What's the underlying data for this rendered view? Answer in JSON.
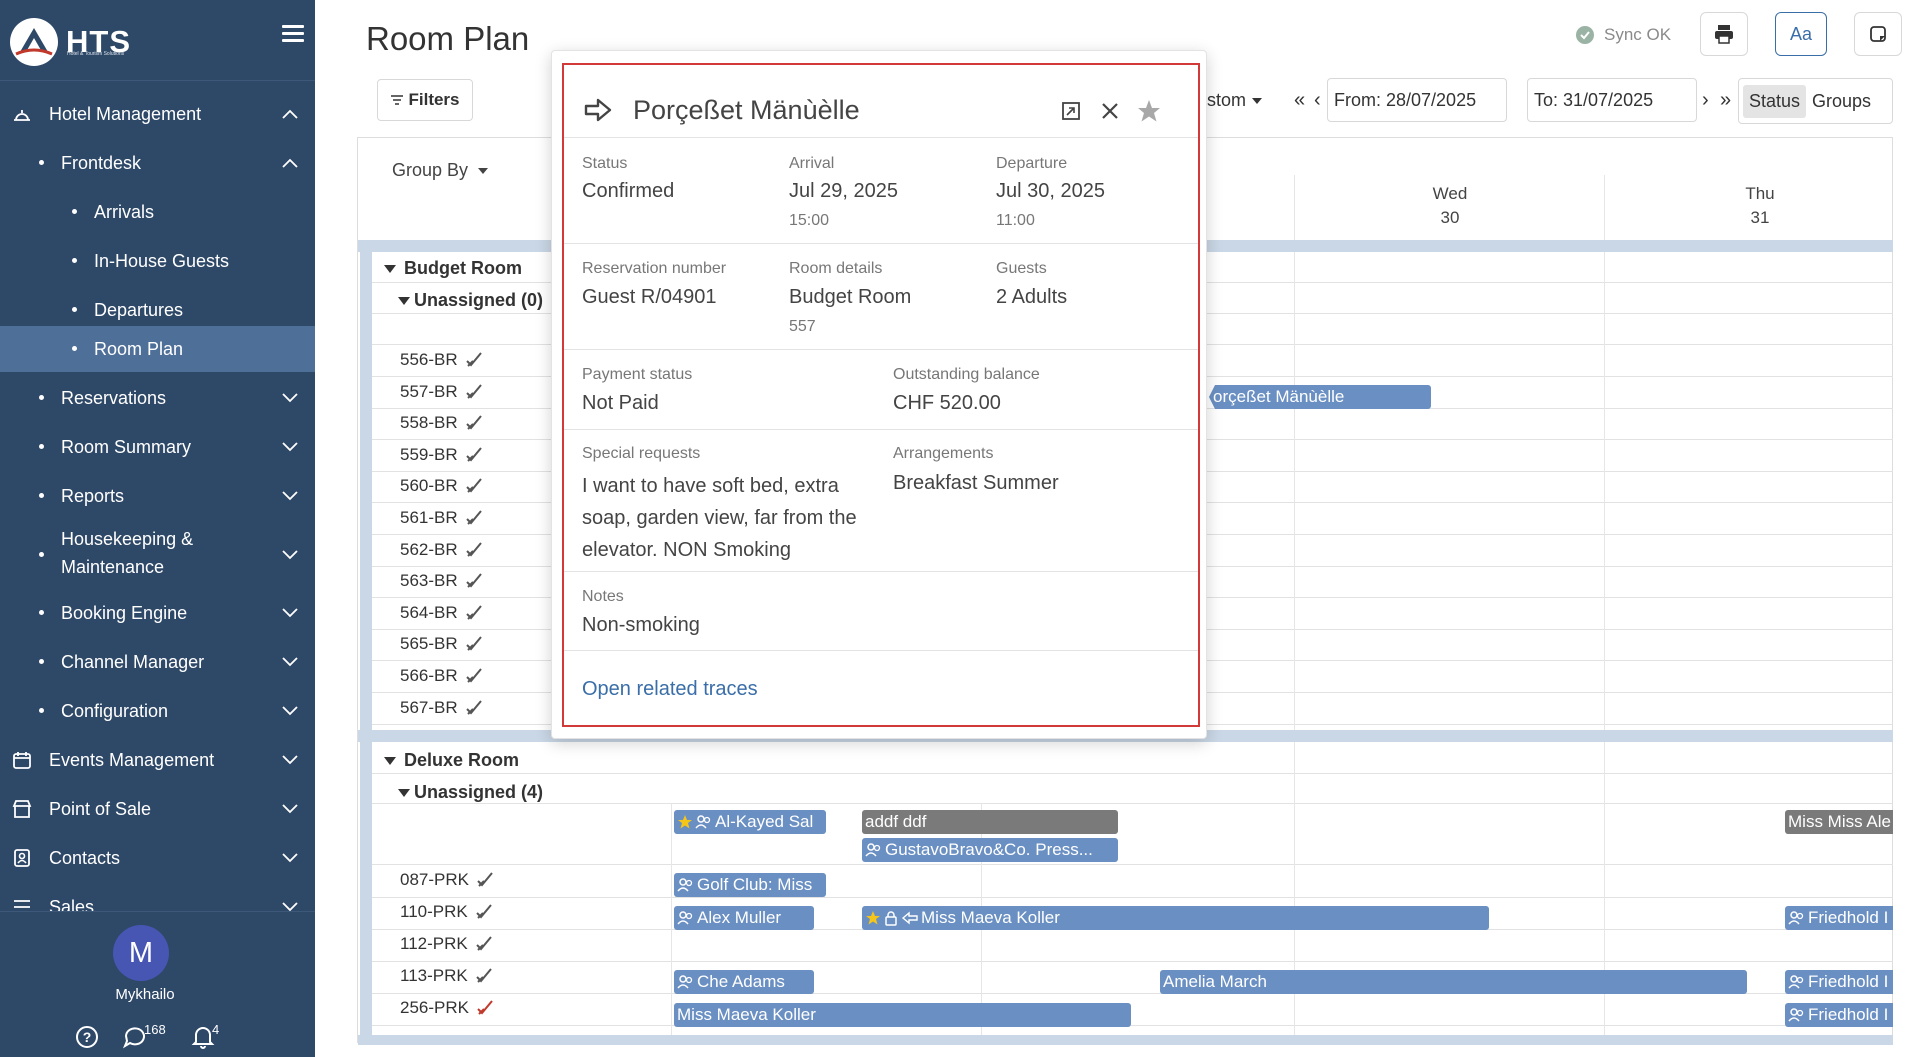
{
  "app": {
    "logo_text": "HTS",
    "logo_sub": "Hotel & Tourism Solutions",
    "page_title": "Room Plan",
    "sync_status": "Sync OK",
    "font_button_label": "Aa"
  },
  "colors": {
    "sidebar": "#2e4867",
    "active_item": "#4e6f98",
    "booking_blue": "#6a8fc2",
    "booking_grey": "#7a7a7a",
    "popover_border": "#d23a3a",
    "link": "#3a6ea8"
  },
  "sidebar": {
    "items": [
      {
        "label": "Hotel Management",
        "icon": "hotel-bell-icon"
      },
      {
        "label": "Frontdesk"
      },
      {
        "label": "Arrivals"
      },
      {
        "label": "In-House Guests"
      },
      {
        "label": "Departures"
      },
      {
        "label": "Room Plan"
      },
      {
        "label": "Reservations"
      },
      {
        "label": "Room Summary"
      },
      {
        "label": "Reports"
      },
      {
        "label": "Housekeeping &"
      },
      {
        "label": "Maintenance"
      },
      {
        "label": "Booking Engine"
      },
      {
        "label": "Channel Manager"
      },
      {
        "label": "Configuration"
      },
      {
        "label": "Events Management",
        "icon": "calendar-icon"
      },
      {
        "label": "Point of Sale",
        "icon": "store-icon"
      },
      {
        "label": "Contacts",
        "icon": "contacts-icon"
      },
      {
        "label": "Sales",
        "icon": "sales-icon"
      }
    ],
    "user": {
      "initial": "M",
      "name": "Mykhailo",
      "messages": "168",
      "notifications": "4"
    }
  },
  "toolbar": {
    "filters": "Filters",
    "view_custom": "stom",
    "first": "«",
    "prev": "‹",
    "from": "From: 28/07/2025",
    "to": "To: 31/07/2025",
    "next": "›",
    "last": "»",
    "status": "Status",
    "groups": "Groups"
  },
  "planner": {
    "group_by": "Group By",
    "days": [
      {
        "dow": "Wed",
        "day": "30"
      },
      {
        "dow": "Thu",
        "day": "31"
      }
    ],
    "categories": [
      {
        "name": "Budget Room",
        "unassigned": "Unassigned (0)"
      },
      {
        "name": "Deluxe Room",
        "unassigned": "Unassigned (4)"
      }
    ],
    "budget_rooms": [
      "556-BR",
      "557-BR",
      "558-BR",
      "559-BR",
      "560-BR",
      "561-BR",
      "562-BR",
      "563-BR",
      "564-BR",
      "565-BR",
      "566-BR",
      "567-BR"
    ],
    "deluxe_rooms": [
      "087-PRK",
      "110-PRK",
      "112-PRK",
      "113-PRK",
      "256-PRK"
    ],
    "bookings": [
      "orçeßet Mänùèlle",
      "Al-Kayed Sal",
      "addf ddf",
      "GustavoBravo&Co. Press...",
      "Miss Miss Ale",
      "Golf Club: Miss",
      "Alex Muller",
      "Miss Maeva Koller",
      "Friedhold I",
      "Che Adams",
      "Amelia March",
      "Friedhold I",
      "Miss Maeva Koller",
      "Friedhold I"
    ]
  },
  "popover": {
    "guest_name": "Porçeßet Mänùèlle",
    "status_label": "Status",
    "status_value": "Confirmed",
    "arrival_label": "Arrival",
    "arrival_date": "Jul 29, 2025",
    "arrival_time": "15:00",
    "departure_label": "Departure",
    "departure_date": "Jul 30, 2025",
    "departure_time": "11:00",
    "resnum_label": "Reservation number",
    "resnum_value": "Guest R/04901",
    "room_label": "Room details",
    "room_value": "Budget Room",
    "room_number": "557",
    "guests_label": "Guests",
    "guests_value": "2 Adults",
    "payment_label": "Payment status",
    "payment_value": "Not Paid",
    "balance_label": "Outstanding balance",
    "balance_value": "CHF 520.00",
    "special_label": "Special requests",
    "special_value": "I want to have soft bed, extra soap, garden view, far from the elevator. NON Smoking",
    "arrangements_label": "Arrangements",
    "arrangements_value": "Breakfast Summer",
    "notes_label": "Notes",
    "notes_value": "Non-smoking",
    "traces_link": "Open related traces"
  }
}
